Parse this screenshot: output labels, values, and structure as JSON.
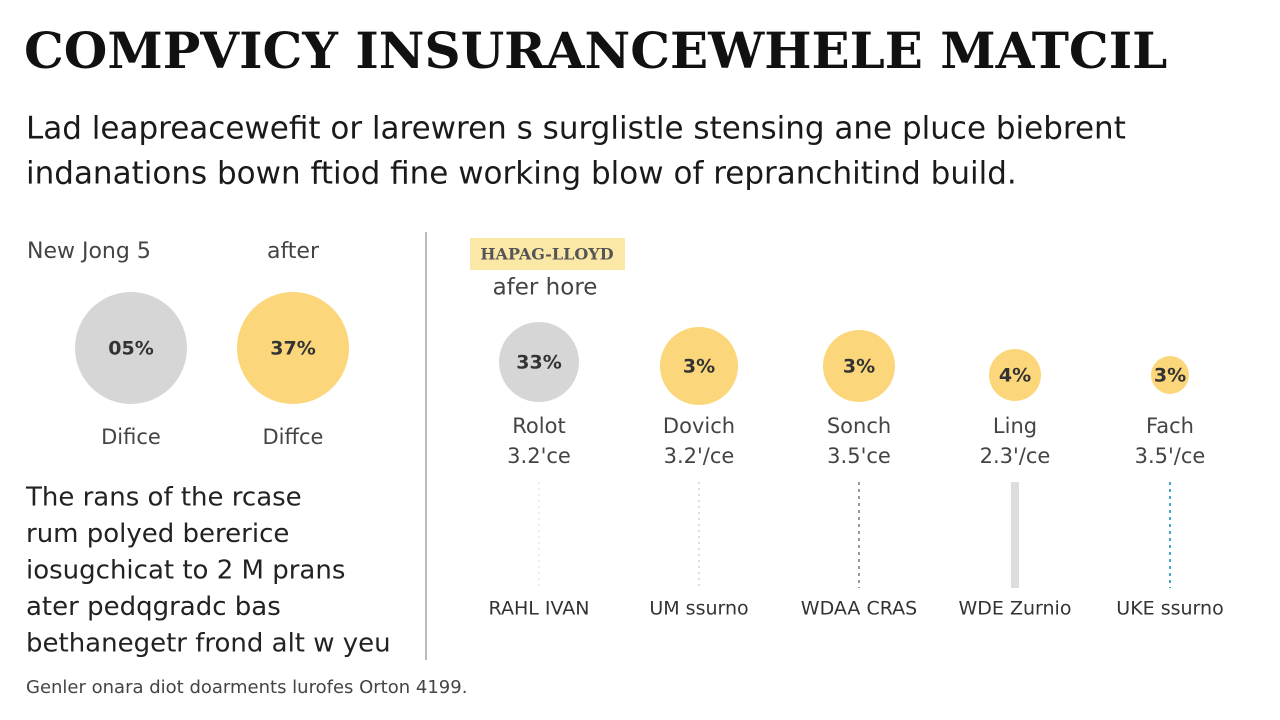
{
  "header": {
    "title": "COMPVICY INSURANCEWHELE MATCIL",
    "subtitle": [
      "Lad leapreacewefit or larewren s surglistle stensing ane pluce biebrent",
      "indanations bown ftiod fine working blow of repranchitind build."
    ]
  },
  "left_panel": {
    "items": [
      {
        "label": "New Jong 5",
        "percent": "05%",
        "caption": "Difice"
      },
      {
        "label": "after",
        "percent": "37%",
        "caption": "Diffce"
      }
    ],
    "text": [
      "The rans of the rcase",
      "rum polyed bererice",
      "iosugchicat to 2 M prans",
      "ater pedqgradc bas",
      "bethanegetr frond alt w yeu"
    ]
  },
  "right_panel": {
    "badge": "HAPAG-LLOYD",
    "subtitle": "afer hore",
    "items": [
      {
        "percent": "33%",
        "name": "Rolot",
        "rate": "3.2'ce",
        "footer": "RAHL IVAN"
      },
      {
        "percent": "3%",
        "name": "Dovich",
        "rate": "3.2'/ce",
        "footer": "UM ssurno"
      },
      {
        "percent": "3%",
        "name": "Sonch",
        "rate": "3.5'ce",
        "footer": "WDAA CRAS"
      },
      {
        "percent": "4%",
        "name": "Ling",
        "rate": "2.3'/ce",
        "footer": "WDE Zurnio"
      },
      {
        "percent": "3%",
        "name": "Fach",
        "rate": "3.5'/ce",
        "footer": "UKE ssurno"
      }
    ]
  },
  "footnote": "Genler onara diot doarments lurofes Orton 4199."
}
